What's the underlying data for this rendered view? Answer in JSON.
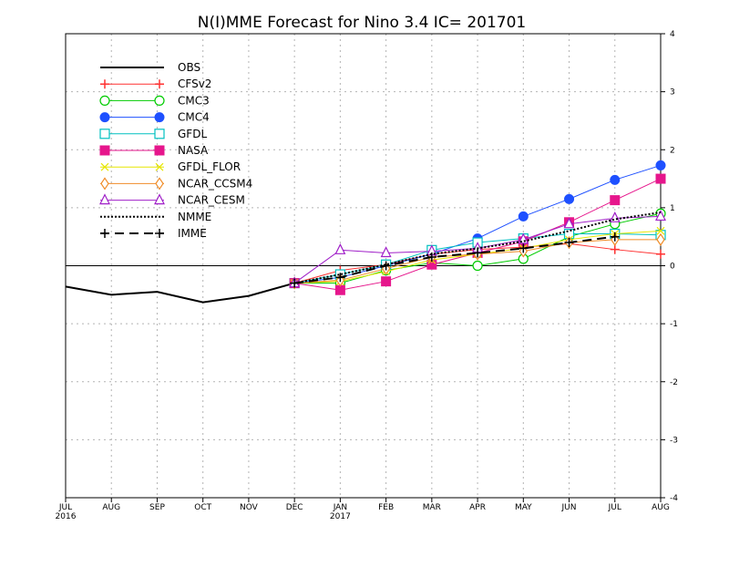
{
  "chart_data": {
    "type": "line",
    "title": "N(I)MME Forecast for Nino 3.4   IC= 201701",
    "xlabel": "",
    "ylabel": "",
    "categories": [
      "JUL",
      "AUG",
      "SEP",
      "OCT",
      "NOV",
      "DEC",
      "JAN",
      "FEB",
      "MAR",
      "APR",
      "MAY",
      "JUN",
      "JUL",
      "AUG"
    ],
    "year_labels": [
      "2016",
      "",
      "",
      "",
      "",
      "",
      "2017",
      "",
      "",
      "",
      "",
      "",
      "",
      ""
    ],
    "ylim": [
      -4,
      4
    ],
    "yticks": [
      "4",
      "3",
      "2",
      "1",
      "0",
      "-1",
      "-2",
      "-3",
      "-4"
    ],
    "grid": true,
    "zero_line": true,
    "legend_position": "top-left",
    "series": [
      {
        "name": "OBS",
        "color": "#000000",
        "marker": "none",
        "dash": "solid",
        "width": 2,
        "values": [
          -0.36,
          -0.5,
          -0.45,
          -0.63,
          -0.52,
          -0.3,
          null,
          null,
          null,
          null,
          null,
          null,
          null,
          null
        ]
      },
      {
        "name": "CFSv2",
        "color": "#ff3030",
        "marker": "plus",
        "dash": "solid",
        "width": 1,
        "values": [
          null,
          null,
          null,
          null,
          null,
          -0.3,
          -0.08,
          0.02,
          0.2,
          0.28,
          0.32,
          0.38,
          0.28,
          0.2
        ]
      },
      {
        "name": "CMC3",
        "color": "#00cc00",
        "marker": "circle-open",
        "dash": "solid",
        "width": 1,
        "values": [
          null,
          null,
          null,
          null,
          null,
          -0.3,
          -0.3,
          -0.08,
          0.05,
          0.0,
          0.12,
          0.5,
          0.72,
          0.9
        ]
      },
      {
        "name": "CMC4",
        "color": "#1e50ff",
        "marker": "circle-filled",
        "dash": "solid",
        "width": 1,
        "values": [
          null,
          null,
          null,
          null,
          null,
          -0.3,
          -0.2,
          0.0,
          0.2,
          0.47,
          0.85,
          1.15,
          1.48,
          1.73
        ]
      },
      {
        "name": "GFDL",
        "color": "#00c0c0",
        "marker": "square-open",
        "dash": "solid",
        "width": 1,
        "values": [
          null,
          null,
          null,
          null,
          null,
          -0.3,
          -0.15,
          0.02,
          0.27,
          0.4,
          0.47,
          0.55,
          0.55,
          0.53
        ]
      },
      {
        "name": "NASA",
        "color": "#e6168c",
        "marker": "square-filled",
        "dash": "solid",
        "width": 1,
        "values": [
          null,
          null,
          null,
          null,
          null,
          -0.3,
          -0.42,
          -0.27,
          0.02,
          0.22,
          0.42,
          0.75,
          1.13,
          1.5
        ]
      },
      {
        "name": "GFDL_FLOR",
        "color": "#e6e600",
        "marker": "x",
        "dash": "solid",
        "width": 1,
        "values": [
          null,
          null,
          null,
          null,
          null,
          -0.3,
          -0.27,
          -0.1,
          0.1,
          0.2,
          0.3,
          0.45,
          0.55,
          0.6
        ]
      },
      {
        "name": "NCAR_CCSM4",
        "color": "#f08c28",
        "marker": "diamond-open",
        "dash": "solid",
        "width": 1,
        "values": [
          null,
          null,
          null,
          null,
          null,
          -0.3,
          -0.25,
          -0.05,
          0.15,
          0.2,
          0.25,
          0.4,
          0.45,
          0.45
        ]
      },
      {
        "name": "NCAR_CESM",
        "color": "#a020c8",
        "marker": "triangle-open",
        "dash": "solid",
        "width": 1,
        "values": [
          null,
          null,
          null,
          null,
          null,
          -0.3,
          0.27,
          0.22,
          0.25,
          0.3,
          0.45,
          0.72,
          0.82,
          0.85
        ]
      },
      {
        "name": "NMME",
        "color": "#000000",
        "marker": "none",
        "dash": "dotted",
        "width": 2,
        "values": [
          null,
          null,
          null,
          null,
          null,
          -0.3,
          -0.15,
          0.02,
          0.2,
          0.3,
          0.42,
          0.6,
          0.8,
          0.92
        ]
      },
      {
        "name": "IMME",
        "color": "#000000",
        "marker": "plus",
        "dash": "dashed",
        "width": 2,
        "values": [
          null,
          null,
          null,
          null,
          null,
          -0.3,
          -0.2,
          0.0,
          0.15,
          0.22,
          0.3,
          0.4,
          0.5,
          null
        ]
      }
    ]
  }
}
